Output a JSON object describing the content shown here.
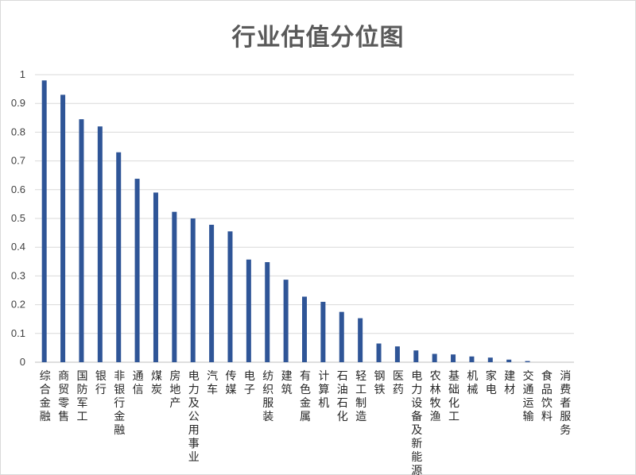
{
  "chart_data": {
    "type": "bar",
    "title": "行业估值分位图",
    "xlabel": "",
    "ylabel": "",
    "ylim": [
      0,
      1
    ],
    "grid": true,
    "legend": "none",
    "bar_color": "#2f5597",
    "y_ticks": [
      "0",
      "0.1",
      "0.2",
      "0.3",
      "0.4",
      "0.5",
      "0.6",
      "0.7",
      "0.8",
      "0.9",
      "1"
    ],
    "categories": [
      "综合金融",
      "商贸零售",
      "国防军工",
      "银行",
      "非银行金融",
      "通信",
      "煤炭",
      "房地产",
      "电力及公用事业",
      "汽车",
      "传媒",
      "电子",
      "纺织服装",
      "建筑",
      "有色金属",
      "计算机",
      "石油石化",
      "轻工制造",
      "钢铁",
      "医药",
      "电力设备及新能源",
      "农林牧渔",
      "基础化工",
      "机械",
      "家电",
      "建材",
      "交通运输",
      "食品饮料",
      "消费者服务"
    ],
    "values": [
      0.98,
      0.93,
      0.845,
      0.82,
      0.73,
      0.638,
      0.59,
      0.523,
      0.5,
      0.478,
      0.455,
      0.357,
      0.348,
      0.287,
      0.228,
      0.21,
      0.175,
      0.153,
      0.065,
      0.055,
      0.041,
      0.029,
      0.027,
      0.02,
      0.016,
      0.009,
      0.004,
      0.0,
      0.0
    ]
  }
}
